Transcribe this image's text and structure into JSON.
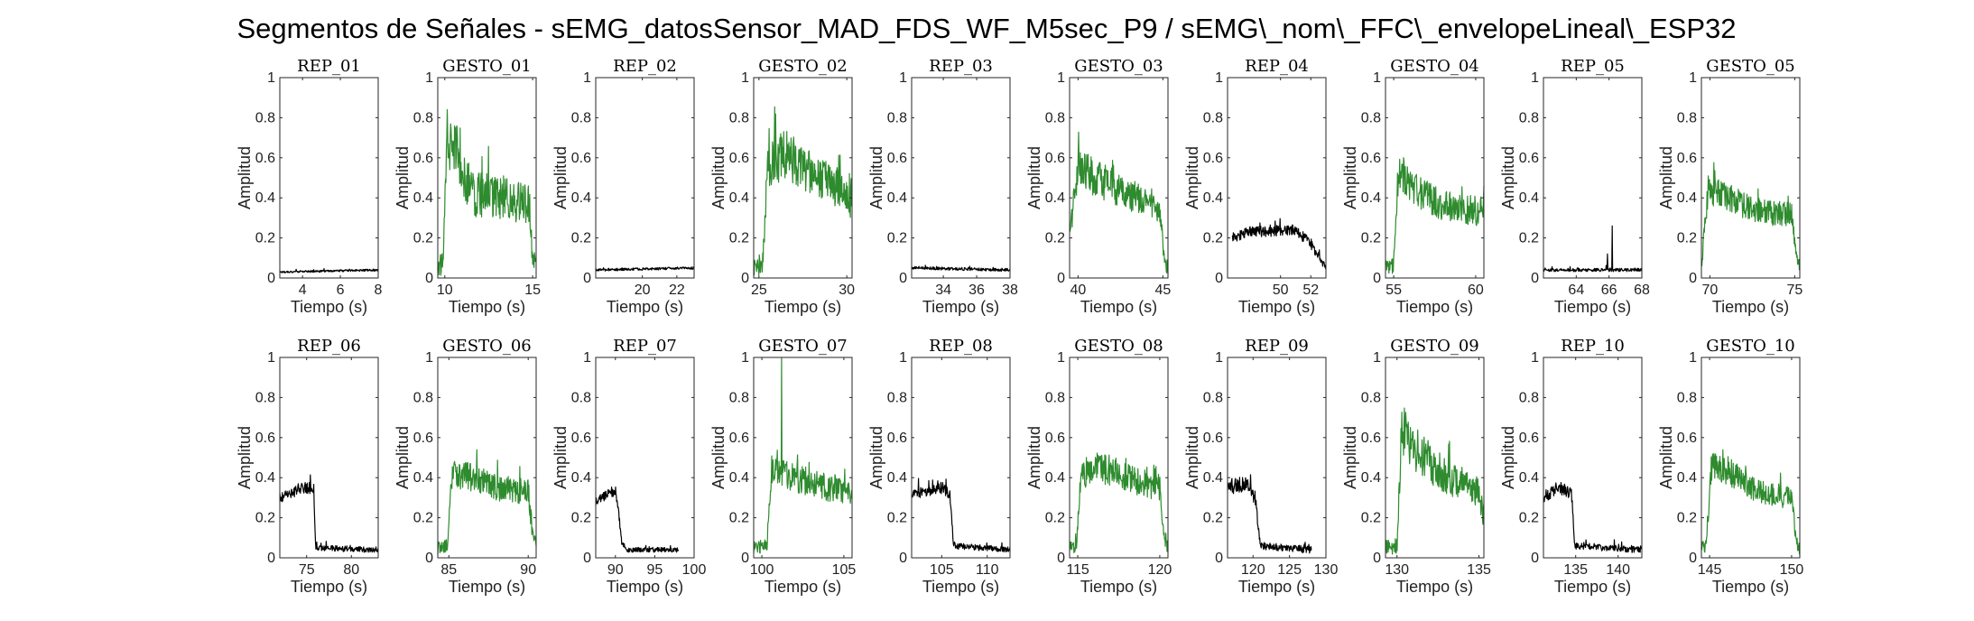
{
  "figure": {
    "title": "Segmentos de Señales - sEMG_datosSensor_MAD_FDS_WF_M5sec_P9 / sEMG\\_nom\\_FFC\\_envelopeLineal\\_ESP32"
  },
  "colors": {
    "rep": "#000000",
    "gesto": "#2e8b2e"
  },
  "chart_data": [
    {
      "type": "line",
      "title": "REP_01",
      "xlabel": "Tiempo (s)",
      "ylabel": "Amplitud",
      "xlim": [
        2.8,
        8
      ],
      "ylim": [
        0,
        1
      ],
      "xticks": [
        4,
        6,
        8
      ],
      "yticks": [
        0,
        0.2,
        0.4,
        0.6,
        0.8,
        1
      ],
      "color": "#000000",
      "x_range": [
        2.8,
        8
      ],
      "profile": [
        {
          "t": 2.8,
          "v": 0.03
        },
        {
          "t": 8,
          "v": 0.04
        }
      ],
      "noise": 0.012
    },
    {
      "type": "line",
      "title": "GESTO_01",
      "xlabel": "Tiempo (s)",
      "ylabel": "Amplitud",
      "xlim": [
        9.6,
        15.2
      ],
      "ylim": [
        0,
        1
      ],
      "xticks": [
        10,
        15
      ],
      "yticks": [
        0,
        0.2,
        0.4,
        0.6,
        0.8,
        1
      ],
      "color": "#2e8b2e",
      "x_range": [
        9.6,
        15.2
      ],
      "profile": [
        {
          "t": 9.6,
          "v": 0.06
        },
        {
          "t": 9.9,
          "v": 0.07
        },
        {
          "t": 10.1,
          "v": 0.72
        },
        {
          "t": 10.8,
          "v": 0.62
        },
        {
          "t": 11.5,
          "v": 0.42
        },
        {
          "t": 13.5,
          "v": 0.4
        },
        {
          "t": 14.8,
          "v": 0.36
        },
        {
          "t": 15.0,
          "v": 0.12
        },
        {
          "t": 15.2,
          "v": 0.05
        }
      ],
      "noise": 0.12
    },
    {
      "type": "line",
      "title": "REP_02",
      "xlabel": "Tiempo (s)",
      "ylabel": "Amplitud",
      "xlim": [
        17.3,
        23
      ],
      "ylim": [
        0,
        1
      ],
      "xticks": [
        20,
        22
      ],
      "yticks": [
        0,
        0.2,
        0.4,
        0.6,
        0.8,
        1
      ],
      "color": "#000000",
      "x_range": [
        17.3,
        23
      ],
      "profile": [
        {
          "t": 17.3,
          "v": 0.04
        },
        {
          "t": 23,
          "v": 0.05
        }
      ],
      "noise": 0.015
    },
    {
      "type": "line",
      "title": "GESTO_02",
      "xlabel": "Tiempo (s)",
      "ylabel": "Amplitud",
      "xlim": [
        24.7,
        30.3
      ],
      "ylim": [
        0,
        1
      ],
      "xticks": [
        25,
        30
      ],
      "yticks": [
        0,
        0.2,
        0.4,
        0.6,
        0.8,
        1
      ],
      "color": "#2e8b2e",
      "x_range": [
        24.7,
        30.3
      ],
      "profile": [
        {
          "t": 24.7,
          "v": 0.05
        },
        {
          "t": 25.2,
          "v": 0.06
        },
        {
          "t": 25.5,
          "v": 0.55
        },
        {
          "t": 26.5,
          "v": 0.62
        },
        {
          "t": 27.5,
          "v": 0.55
        },
        {
          "t": 29.5,
          "v": 0.45
        },
        {
          "t": 30.3,
          "v": 0.38
        }
      ],
      "noise": 0.1
    },
    {
      "type": "line",
      "title": "REP_03",
      "xlabel": "Tiempo (s)",
      "ylabel": "Amplitud",
      "xlim": [
        32.1,
        38
      ],
      "ylim": [
        0,
        1
      ],
      "xticks": [
        34,
        36,
        38
      ],
      "yticks": [
        0,
        0.2,
        0.4,
        0.6,
        0.8,
        1
      ],
      "color": "#000000",
      "x_range": [
        32.1,
        38
      ],
      "profile": [
        {
          "t": 32.1,
          "v": 0.05
        },
        {
          "t": 38,
          "v": 0.04
        }
      ],
      "noise": 0.018
    },
    {
      "type": "line",
      "title": "GESTO_03",
      "xlabel": "Tiempo (s)",
      "ylabel": "Amplitud",
      "xlim": [
        39.5,
        45.3
      ],
      "ylim": [
        0,
        1
      ],
      "xticks": [
        40,
        45
      ],
      "yticks": [
        0,
        0.2,
        0.4,
        0.6,
        0.8,
        1
      ],
      "color": "#2e8b2e",
      "x_range": [
        39.5,
        45.3
      ],
      "profile": [
        {
          "t": 39.5,
          "v": 0.22
        },
        {
          "t": 40,
          "v": 0.55
        },
        {
          "t": 41,
          "v": 0.5
        },
        {
          "t": 43,
          "v": 0.42
        },
        {
          "t": 44.8,
          "v": 0.35
        },
        {
          "t": 45.1,
          "v": 0.1
        },
        {
          "t": 45.3,
          "v": 0.04
        }
      ],
      "noise": 0.09
    },
    {
      "type": "line",
      "title": "REP_04",
      "xlabel": "Tiempo (s)",
      "ylabel": "Amplitud",
      "xlim": [
        46.5,
        53
      ],
      "ylim": [
        0,
        1
      ],
      "xticks": [
        50,
        52
      ],
      "yticks": [
        0,
        0.2,
        0.4,
        0.6,
        0.8,
        1
      ],
      "color": "#000000",
      "x_range": [
        46.8,
        53
      ],
      "profile": [
        {
          "t": 46.8,
          "v": 0.2
        },
        {
          "t": 48,
          "v": 0.23
        },
        {
          "t": 51,
          "v": 0.24
        },
        {
          "t": 52,
          "v": 0.17
        },
        {
          "t": 53,
          "v": 0.05
        }
      ],
      "noise": 0.04
    },
    {
      "type": "line",
      "title": "GESTO_04",
      "xlabel": "Tiempo (s)",
      "ylabel": "Amplitud",
      "xlim": [
        54.5,
        60.5
      ],
      "ylim": [
        0,
        1
      ],
      "xticks": [
        55,
        60
      ],
      "yticks": [
        0,
        0.2,
        0.4,
        0.6,
        0.8,
        1
      ],
      "color": "#2e8b2e",
      "x_range": [
        54.5,
        60.5
      ],
      "profile": [
        {
          "t": 54.5,
          "v": 0.05
        },
        {
          "t": 55,
          "v": 0.06
        },
        {
          "t": 55.3,
          "v": 0.55
        },
        {
          "t": 56,
          "v": 0.45
        },
        {
          "t": 58,
          "v": 0.36
        },
        {
          "t": 60.5,
          "v": 0.33
        }
      ],
      "noise": 0.09
    },
    {
      "type": "line",
      "title": "REP_05",
      "xlabel": "Tiempo (s)",
      "ylabel": "Amplitud",
      "xlim": [
        62,
        68
      ],
      "ylim": [
        0,
        1
      ],
      "xticks": [
        64,
        66,
        68
      ],
      "yticks": [
        0,
        0.2,
        0.4,
        0.6,
        0.8,
        1
      ],
      "color": "#000000",
      "x_range": [
        62,
        68
      ],
      "profile": [
        {
          "t": 62,
          "v": 0.04
        },
        {
          "t": 68,
          "v": 0.04
        }
      ],
      "noise": 0.02,
      "spikes": [
        {
          "t": 66.2,
          "v": 0.26
        },
        {
          "t": 65.9,
          "v": 0.12
        }
      ]
    },
    {
      "type": "line",
      "title": "GESTO_05",
      "xlabel": "Tiempo (s)",
      "ylabel": "Amplitud",
      "xlim": [
        69.5,
        75.3
      ],
      "ylim": [
        0,
        1
      ],
      "xticks": [
        70,
        75
      ],
      "yticks": [
        0,
        0.2,
        0.4,
        0.6,
        0.8,
        1
      ],
      "color": "#2e8b2e",
      "x_range": [
        69.5,
        75.3
      ],
      "profile": [
        {
          "t": 69.5,
          "v": 0.05
        },
        {
          "t": 69.9,
          "v": 0.45
        },
        {
          "t": 71,
          "v": 0.4
        },
        {
          "t": 73,
          "v": 0.33
        },
        {
          "t": 74.8,
          "v": 0.32
        },
        {
          "t": 75.1,
          "v": 0.1
        },
        {
          "t": 75.3,
          "v": 0.05
        }
      ],
      "noise": 0.08
    },
    {
      "type": "line",
      "title": "REP_06",
      "xlabel": "Tiempo (s)",
      "ylabel": "Amplitud",
      "xlim": [
        72,
        83
      ],
      "ylim": [
        0,
        1
      ],
      "xticks": [
        75,
        80
      ],
      "yticks": [
        0,
        0.2,
        0.4,
        0.6,
        0.8,
        1
      ],
      "color": "#000000",
      "x_range": [
        72,
        83
      ],
      "profile": [
        {
          "t": 72,
          "v": 0.3
        },
        {
          "t": 74.5,
          "v": 0.35
        },
        {
          "t": 75.8,
          "v": 0.34
        },
        {
          "t": 76.0,
          "v": 0.05
        },
        {
          "t": 83,
          "v": 0.04
        }
      ],
      "noise": 0.035
    },
    {
      "type": "line",
      "title": "GESTO_06",
      "xlabel": "Tiempo (s)",
      "ylabel": "Amplitud",
      "xlim": [
        84.3,
        90.5
      ],
      "ylim": [
        0,
        1
      ],
      "xticks": [
        85,
        90
      ],
      "yticks": [
        0,
        0.2,
        0.4,
        0.6,
        0.8,
        1
      ],
      "color": "#2e8b2e",
      "x_range": [
        84.3,
        90.5
      ],
      "profile": [
        {
          "t": 84.3,
          "v": 0.05
        },
        {
          "t": 84.9,
          "v": 0.06
        },
        {
          "t": 85.2,
          "v": 0.4
        },
        {
          "t": 86,
          "v": 0.42
        },
        {
          "t": 88,
          "v": 0.35
        },
        {
          "t": 90,
          "v": 0.33
        },
        {
          "t": 90.3,
          "v": 0.1
        },
        {
          "t": 90.5,
          "v": 0.05
        }
      ],
      "noise": 0.08
    },
    {
      "type": "line",
      "title": "REP_07",
      "xlabel": "Tiempo (s)",
      "ylabel": "Amplitud",
      "xlim": [
        87.5,
        100
      ],
      "ylim": [
        0,
        1
      ],
      "xticks": [
        90,
        95,
        100
      ],
      "yticks": [
        0,
        0.2,
        0.4,
        0.6,
        0.8,
        1
      ],
      "color": "#000000",
      "x_range": [
        87.5,
        98
      ],
      "profile": [
        {
          "t": 87.5,
          "v": 0.28
        },
        {
          "t": 89.5,
          "v": 0.33
        },
        {
          "t": 90.2,
          "v": 0.3
        },
        {
          "t": 90.8,
          "v": 0.08
        },
        {
          "t": 91.5,
          "v": 0.04
        },
        {
          "t": 98,
          "v": 0.04
        }
      ],
      "noise": 0.03
    },
    {
      "type": "line",
      "title": "GESTO_07",
      "xlabel": "Tiempo (s)",
      "ylabel": "Amplitud",
      "xlim": [
        99.5,
        105.5
      ],
      "ylim": [
        0,
        1
      ],
      "xticks": [
        100,
        105
      ],
      "yticks": [
        0,
        0.2,
        0.4,
        0.6,
        0.8,
        1
      ],
      "color": "#2e8b2e",
      "x_range": [
        99.5,
        105.5
      ],
      "profile": [
        {
          "t": 99.5,
          "v": 0.05
        },
        {
          "t": 100.3,
          "v": 0.06
        },
        {
          "t": 100.6,
          "v": 0.45
        },
        {
          "t": 102,
          "v": 0.4
        },
        {
          "t": 104,
          "v": 0.35
        },
        {
          "t": 105.5,
          "v": 0.33
        }
      ],
      "noise": 0.08,
      "spikes": [
        {
          "t": 101.2,
          "v": 1.0
        }
      ]
    },
    {
      "type": "line",
      "title": "REP_08",
      "xlabel": "Tiempo (s)",
      "ylabel": "Amplitud",
      "xlim": [
        101.7,
        112.5
      ],
      "ylim": [
        0,
        1
      ],
      "xticks": [
        105,
        110
      ],
      "yticks": [
        0,
        0.2,
        0.4,
        0.6,
        0.8,
        1
      ],
      "color": "#000000",
      "x_range": [
        101.7,
        112.5
      ],
      "profile": [
        {
          "t": 101.7,
          "v": 0.32
        },
        {
          "t": 105,
          "v": 0.35
        },
        {
          "t": 105.9,
          "v": 0.32
        },
        {
          "t": 106.3,
          "v": 0.06
        },
        {
          "t": 112.5,
          "v": 0.04
        }
      ],
      "noise": 0.035
    },
    {
      "type": "line",
      "title": "GESTO_08",
      "xlabel": "Tiempo (s)",
      "ylabel": "Amplitud",
      "xlim": [
        114.5,
        120.5
      ],
      "ylim": [
        0,
        1
      ],
      "xticks": [
        115,
        120
      ],
      "yticks": [
        0,
        0.2,
        0.4,
        0.6,
        0.8,
        1
      ],
      "color": "#2e8b2e",
      "x_range": [
        114.5,
        120.5
      ],
      "profile": [
        {
          "t": 114.5,
          "v": 0.05
        },
        {
          "t": 114.9,
          "v": 0.06
        },
        {
          "t": 115.2,
          "v": 0.42
        },
        {
          "t": 116.5,
          "v": 0.45
        },
        {
          "t": 118,
          "v": 0.4
        },
        {
          "t": 120,
          "v": 0.35
        },
        {
          "t": 120.3,
          "v": 0.1
        },
        {
          "t": 120.5,
          "v": 0.05
        }
      ],
      "noise": 0.08
    },
    {
      "type": "line",
      "title": "REP_09",
      "xlabel": "Tiempo (s)",
      "ylabel": "Amplitud",
      "xlim": [
        116.5,
        130
      ],
      "ylim": [
        0,
        1
      ],
      "xticks": [
        120,
        125,
        130
      ],
      "yticks": [
        0,
        0.2,
        0.4,
        0.6,
        0.8,
        1
      ],
      "color": "#000000",
      "x_range": [
        116.5,
        128
      ],
      "profile": [
        {
          "t": 116.5,
          "v": 0.35
        },
        {
          "t": 119,
          "v": 0.37
        },
        {
          "t": 120.3,
          "v": 0.3
        },
        {
          "t": 121.0,
          "v": 0.06
        },
        {
          "t": 128,
          "v": 0.04
        }
      ],
      "noise": 0.045
    },
    {
      "type": "line",
      "title": "GESTO_09",
      "xlabel": "Tiempo (s)",
      "ylabel": "Amplitud",
      "xlim": [
        129.3,
        135.3
      ],
      "ylim": [
        0,
        1
      ],
      "xticks": [
        130,
        135
      ],
      "yticks": [
        0,
        0.2,
        0.4,
        0.6,
        0.8,
        1
      ],
      "color": "#2e8b2e",
      "x_range": [
        129.3,
        135.3
      ],
      "profile": [
        {
          "t": 129.3,
          "v": 0.05
        },
        {
          "t": 130,
          "v": 0.06
        },
        {
          "t": 130.3,
          "v": 0.65
        },
        {
          "t": 131,
          "v": 0.55
        },
        {
          "t": 133,
          "v": 0.4
        },
        {
          "t": 135,
          "v": 0.33
        },
        {
          "t": 135.3,
          "v": 0.2
        }
      ],
      "noise": 0.1
    },
    {
      "type": "line",
      "title": "REP_10",
      "xlabel": "Tiempo (s)",
      "ylabel": "Amplitud",
      "xlim": [
        131.2,
        142.8
      ],
      "ylim": [
        0,
        1
      ],
      "xticks": [
        135,
        140
      ],
      "yticks": [
        0,
        0.2,
        0.4,
        0.6,
        0.8,
        1
      ],
      "color": "#000000",
      "x_range": [
        131.2,
        142.8
      ],
      "profile": [
        {
          "t": 131.2,
          "v": 0.3
        },
        {
          "t": 133,
          "v": 0.35
        },
        {
          "t": 134.5,
          "v": 0.32
        },
        {
          "t": 134.9,
          "v": 0.06
        },
        {
          "t": 142.8,
          "v": 0.04
        }
      ],
      "noise": 0.04
    },
    {
      "type": "line",
      "title": "GESTO_10",
      "xlabel": "Tiempo (s)",
      "ylabel": "Amplitud",
      "xlim": [
        144.5,
        150.5
      ],
      "ylim": [
        0,
        1
      ],
      "xticks": [
        145,
        150
      ],
      "yticks": [
        0,
        0.2,
        0.4,
        0.6,
        0.8,
        1
      ],
      "color": "#2e8b2e",
      "x_range": [
        144.5,
        150.5
      ],
      "profile": [
        {
          "t": 144.5,
          "v": 0.05
        },
        {
          "t": 144.8,
          "v": 0.06
        },
        {
          "t": 145.1,
          "v": 0.45
        },
        {
          "t": 146,
          "v": 0.44
        },
        {
          "t": 148,
          "v": 0.33
        },
        {
          "t": 150,
          "v": 0.3
        },
        {
          "t": 150.3,
          "v": 0.08
        },
        {
          "t": 150.5,
          "v": 0.04
        }
      ],
      "noise": 0.075
    }
  ]
}
